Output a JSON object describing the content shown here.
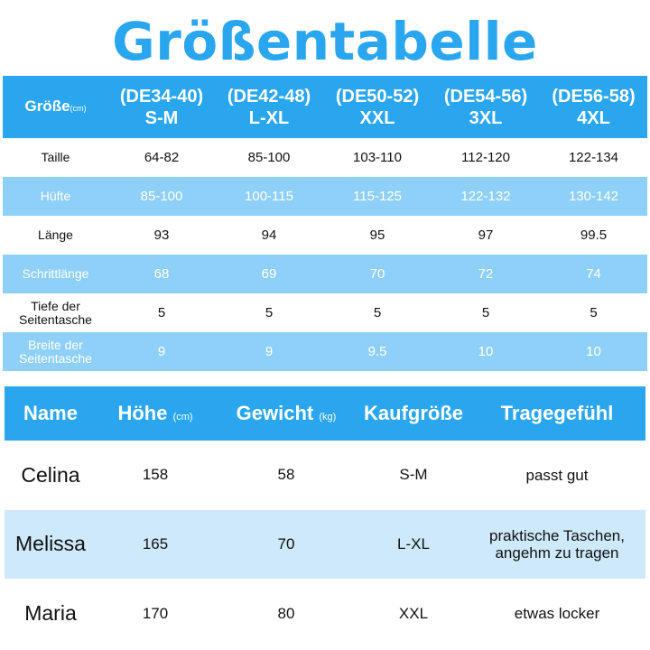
{
  "title": "Größentabelle",
  "size_table": {
    "corner_label": "Größe",
    "corner_unit": "(cm)",
    "columns": [
      {
        "range": "(DE34-40)",
        "size": "S-M"
      },
      {
        "range": "(DE42-48)",
        "size": "L-XL"
      },
      {
        "range": "(DE50-52)",
        "size": "XXL"
      },
      {
        "range": "(DE54-56)",
        "size": "3XL"
      },
      {
        "range": "(DE56-58)",
        "size": "4XL"
      }
    ],
    "rows": [
      {
        "label": "Taille",
        "values": [
          "64-82",
          "85-100",
          "103-110",
          "112-120",
          "122-134"
        ]
      },
      {
        "label": "Hüfte",
        "values": [
          "85-100",
          "100-115",
          "115-125",
          "122-132",
          "130-142"
        ]
      },
      {
        "label": "Länge",
        "values": [
          "93",
          "94",
          "95",
          "97",
          "99.5"
        ]
      },
      {
        "label": "Schrittlänge",
        "values": [
          "68",
          "69",
          "70",
          "72",
          "74"
        ]
      },
      {
        "label": "Tiefe der Seitentasche",
        "values": [
          "5",
          "5",
          "5",
          "5",
          "5"
        ]
      },
      {
        "label": "Breite der Seitentasche",
        "values": [
          "9",
          "9",
          "9.5",
          "10",
          "10"
        ]
      }
    ]
  },
  "customer_table": {
    "headers": {
      "name": "Name",
      "height": "Höhe",
      "height_unit": "(cm)",
      "weight": "Gewicht",
      "weight_unit": "(kg)",
      "size": "Kaufgröße",
      "feel": "Tragegefühl"
    },
    "rows": [
      {
        "name": "Celina",
        "height": "158",
        "weight": "58",
        "size": "S-M",
        "feel": "passt gut"
      },
      {
        "name": "Melissa",
        "height": "165",
        "weight": "70",
        "size": "L-XL",
        "feel": "praktische Taschen, angehm zu tragen"
      },
      {
        "name": "Maria",
        "height": "170",
        "weight": "80",
        "size": "XXL",
        "feel": "etwas locker"
      }
    ]
  },
  "colors": {
    "accent": "#2aa6ef",
    "light_row": "#8fd0f8",
    "pale_row": "#cde9fa"
  }
}
